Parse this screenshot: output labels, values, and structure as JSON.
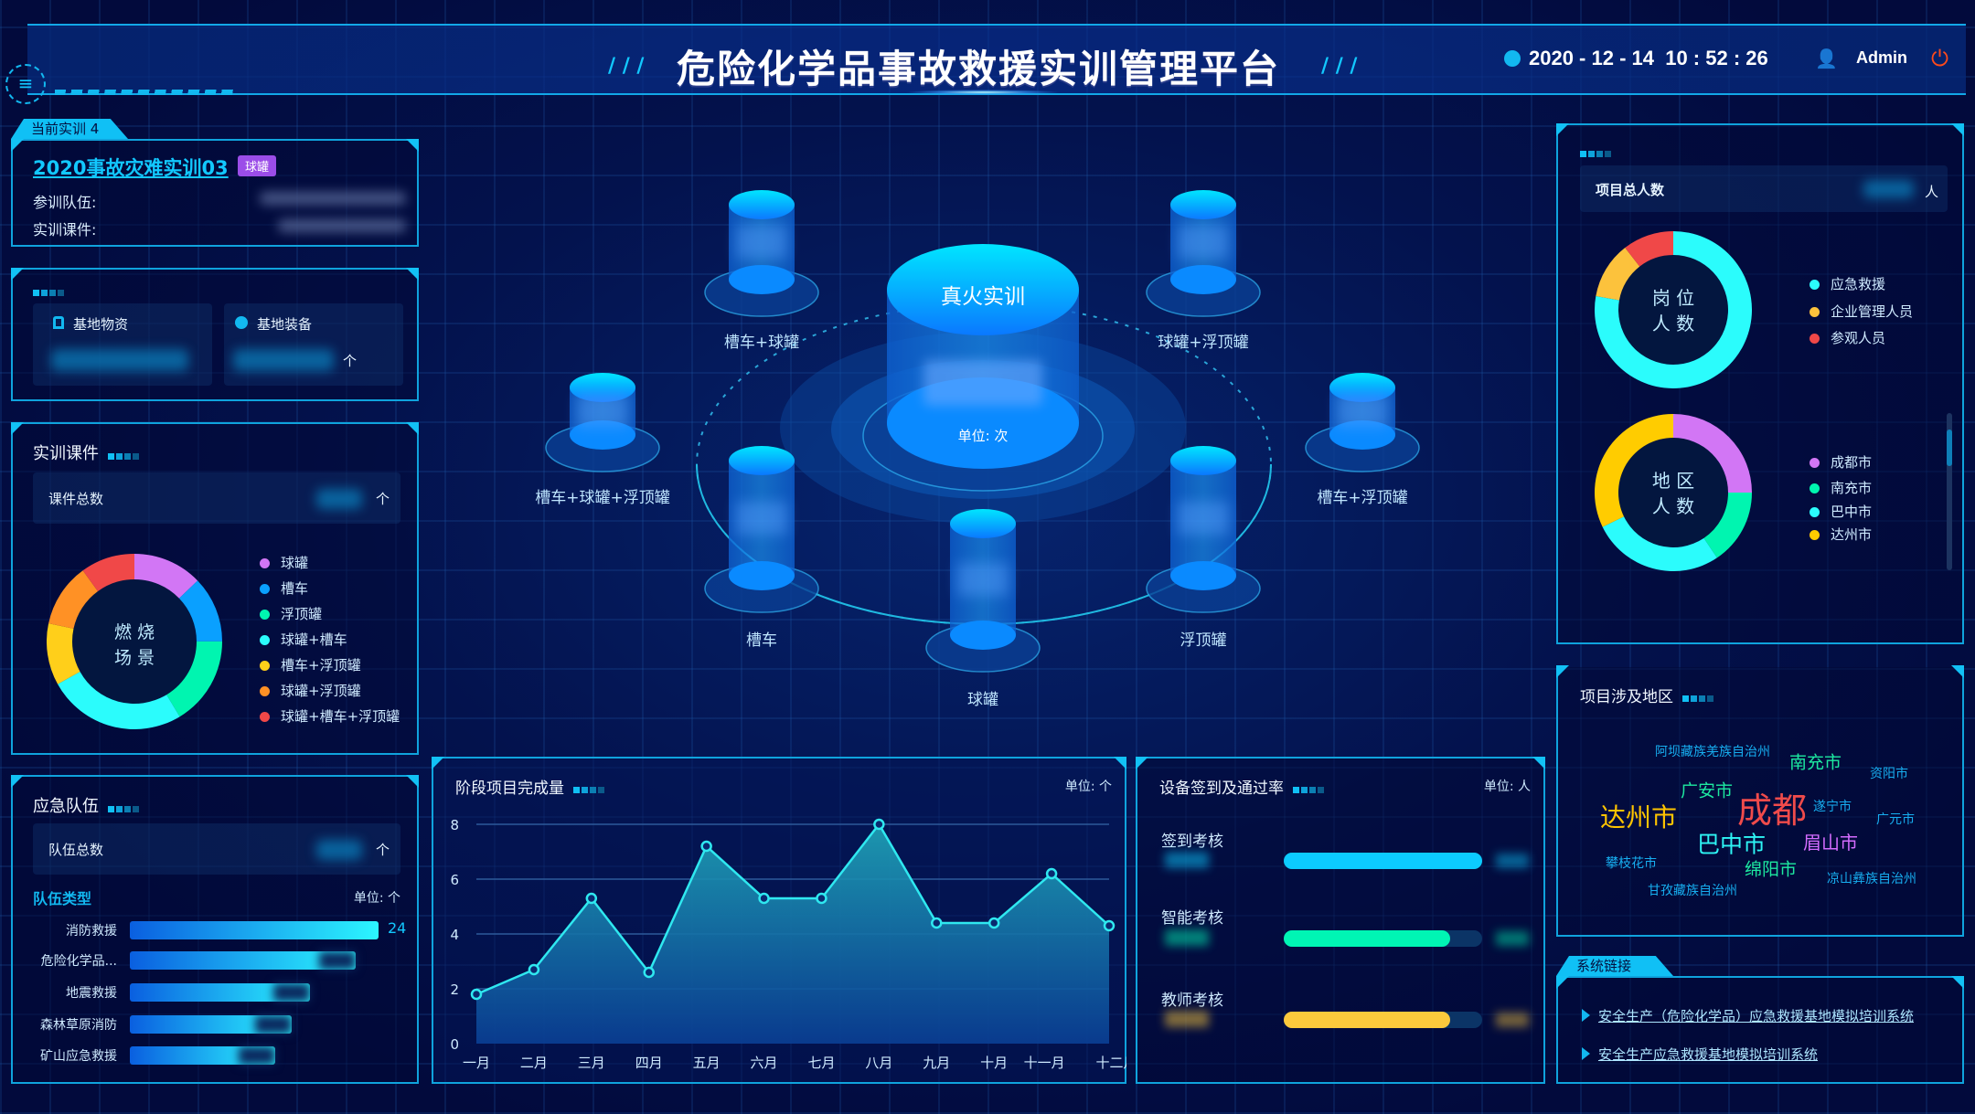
{
  "header": {
    "title": "危险化学品事故救援实训管理平台",
    "datetime": "2020 - 12 - 14  10 : 52 : 26",
    "user": "Admin",
    "icons": [
      "menu-icon",
      "clock-icon",
      "user-icon",
      "power-icon"
    ]
  },
  "current": {
    "tab": "当前实训 4",
    "name": "2020事故灾难实训03",
    "badge": "球罐",
    "team_label": "参训队伍:",
    "course_label": "实训课件:",
    "badge_color": "#9b4de8"
  },
  "base": {
    "materials": "基地物资",
    "equipment": "基地装备",
    "unit": "个"
  },
  "courses": {
    "title": "实训课件",
    "total_label": "课件总数",
    "unit": "个",
    "center": [
      "燃 烧",
      "场 景"
    ],
    "items": [
      {
        "label": "球罐",
        "color": "#d276f5",
        "share": 12.8
      },
      {
        "label": "槽车",
        "color": "#0aa0ff",
        "share": 12.2
      },
      {
        "label": "浮顶罐",
        "color": "#00f5b0",
        "share": 16.4
      },
      {
        "label": "球罐+槽车",
        "color": "#2bfcfc",
        "share": 25.6
      },
      {
        "label": "槽车+浮顶罐",
        "color": "#ffcf1a",
        "share": 11.4
      },
      {
        "label": "球罐+浮顶罐",
        "color": "#ff9125",
        "share": 11.7
      },
      {
        "label": "球罐+槽车+浮顶罐",
        "color": "#f04848",
        "share": 10.0
      }
    ]
  },
  "teams": {
    "title": "应急队伍",
    "total_label": "队伍总数",
    "unit": "个",
    "type_label": "队伍类型",
    "unit_label": "单位: 个",
    "items": [
      {
        "label": "消防救援",
        "value": 24,
        "shown": "24"
      },
      {
        "label": "危险化学品...",
        "value": 21.8
      },
      {
        "label": "地震救援",
        "value": 17.4
      },
      {
        "label": "森林草原消防",
        "value": 15.6
      },
      {
        "label": "矿山应急救援",
        "value": 14
      }
    ]
  },
  "center": {
    "main_label": "真火实训",
    "unit": "单位: 次",
    "nodes": [
      "槽车+球罐",
      "球罐+浮顶罐",
      "槽车+球罐+浮顶罐",
      "槽车+浮顶罐",
      "槽车",
      "浮顶罐",
      "球罐"
    ]
  },
  "stage": {
    "title": "阶段项目完成量",
    "unit": "单位: 个"
  },
  "chart_data": {
    "type": "area",
    "title": "阶段项目完成量",
    "ylabel": "单位: 个",
    "ylim": [
      0,
      8
    ],
    "yticks": [
      0,
      2,
      4,
      6,
      8
    ],
    "grid": true,
    "categories": [
      "一月",
      "二月",
      "三月",
      "四月",
      "五月",
      "六月",
      "七月",
      "八月",
      "九月",
      "十月",
      "十一月",
      "十二月"
    ],
    "values": [
      1.8,
      2.7,
      5.3,
      2.6,
      7.2,
      5.3,
      5.3,
      8.0,
      4.4,
      4.4,
      6.2,
      4.3
    ],
    "color": "#2fe8f0"
  },
  "equip": {
    "title": "设备签到及通过率",
    "unit": "单位: 人",
    "rows": [
      {
        "label": "签到考核",
        "color": "#0ccbff",
        "fill": 1.0
      },
      {
        "label": "智能考核",
        "color": "#00f5b4",
        "fill": 0.84
      },
      {
        "label": "教师考核",
        "color": "#fcc93c",
        "fill": 0.84
      }
    ]
  },
  "people": {
    "total_label": "项目总人数",
    "unit": "人",
    "post": {
      "center": [
        "岗 位",
        "人 数"
      ],
      "items": [
        {
          "label": "应急救援",
          "color": "#2bfcfc",
          "share": 77.8
        },
        {
          "label": "企业管理人员",
          "color": "#fcc23c",
          "share": 11.7
        },
        {
          "label": "参观人员",
          "color": "#f04848",
          "share": 10.5
        }
      ]
    },
    "region": {
      "center": [
        "地 区",
        "人 数"
      ],
      "items": [
        {
          "label": "成都市",
          "color": "#d276f5",
          "share": 25
        },
        {
          "label": "南充市",
          "color": "#00f5b0",
          "share": 15.6
        },
        {
          "label": "巴中市",
          "color": "#2bfcfc",
          "share": 27.2
        },
        {
          "label": "达州市",
          "color": "#ffcc00",
          "share": 32.2
        }
      ]
    }
  },
  "regions": {
    "title": "项目涉及地区",
    "words": [
      {
        "text": "阿坝藏族羌族自治州",
        "color": "#17aef0"
      },
      {
        "text": "南充市",
        "color": "#1de9a0"
      },
      {
        "text": "资阳市",
        "color": "#17aef0"
      },
      {
        "text": "广安市",
        "color": "#1de9a0"
      },
      {
        "text": "成都",
        "color": "#f04b4b"
      },
      {
        "text": "遂宁市",
        "color": "#17aef0"
      },
      {
        "text": "广元市",
        "color": "#17aef0"
      },
      {
        "text": "达州市",
        "color": "#ffc400"
      },
      {
        "text": "巴中市",
        "color": "#2ef5f5"
      },
      {
        "text": "眉山市",
        "color": "#d46cff"
      },
      {
        "text": "攀枝花市",
        "color": "#17aef0"
      },
      {
        "text": "绵阳市",
        "color": "#1de9a0"
      },
      {
        "text": "凉山彝族自治州",
        "color": "#17aef0"
      },
      {
        "text": "甘孜藏族自治州",
        "color": "#17aef0"
      }
    ]
  },
  "links": {
    "tab": "系统链接",
    "items": [
      "安全生产（危险化学品）应急救援基地模拟培训系统",
      "安全生产应急救援基地模拟培训系统"
    ]
  }
}
